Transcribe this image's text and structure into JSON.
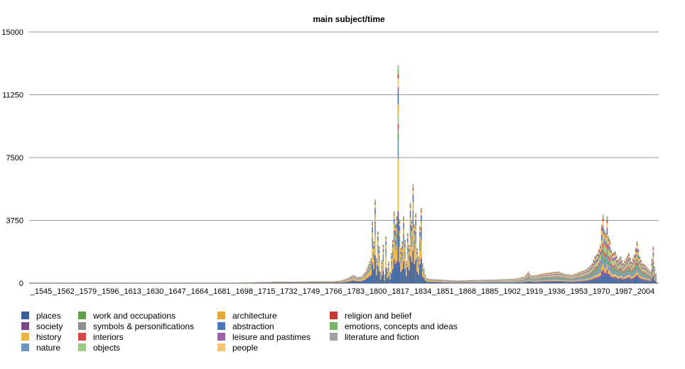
{
  "chart_data": {
    "type": "bar",
    "stacked": true,
    "title": "main subject/time",
    "xlabel": "",
    "ylabel": "",
    "ylim": [
      0,
      15000
    ],
    "y_ticks": [
      "0",
      "3750",
      "7500",
      "11250",
      "15000"
    ],
    "x_tick_labels": [
      "_1545",
      "_1562",
      "_1579",
      "_1596",
      "_1613",
      "_1630",
      "_1647",
      "_1664",
      "_1681",
      "_1698",
      "_1715",
      "_1732",
      "_1749",
      "_1766",
      "_1783",
      "_1800",
      "_1817",
      "_1834",
      "_1851",
      "_1868",
      "_1885",
      "_1902",
      "_1919",
      "_1936",
      "_1953",
      "_1970",
      "_1987",
      "_2004"
    ],
    "x_range": [
      1545,
      2009
    ],
    "grid": true,
    "legend_position": "bottom",
    "series": [
      {
        "name": "places",
        "color": "#3a5f96"
      },
      {
        "name": "society",
        "color": "#7a4a86"
      },
      {
        "name": "history",
        "color": "#eeb245"
      },
      {
        "name": "nature",
        "color": "#6e93bd"
      },
      {
        "name": "work and occupations",
        "color": "#5f9e4c"
      },
      {
        "name": "symbols & personifications",
        "color": "#8e8e8e"
      },
      {
        "name": "interiors",
        "color": "#d8474a"
      },
      {
        "name": "objects",
        "color": "#9cc98a"
      },
      {
        "name": "architecture",
        "color": "#e7a83a"
      },
      {
        "name": "abstraction",
        "color": "#4e78bb"
      },
      {
        "name": "leisure and pastimes",
        "color": "#9862a4"
      },
      {
        "name": "people",
        "color": "#f1c776"
      },
      {
        "name": "religion and belief",
        "color": "#c63a37"
      },
      {
        "name": "emotions, concepts and ideas",
        "color": "#7ab46a"
      },
      {
        "name": "literature and fiction",
        "color": "#a0a0a0"
      }
    ],
    "totals_by_year": [
      [
        1700,
        30
      ],
      [
        1720,
        60
      ],
      [
        1730,
        80
      ],
      [
        1740,
        70
      ],
      [
        1750,
        90
      ],
      [
        1760,
        100
      ],
      [
        1770,
        110
      ],
      [
        1775,
        150
      ],
      [
        1780,
        300
      ],
      [
        1784,
        500
      ],
      [
        1787,
        350
      ],
      [
        1790,
        400
      ],
      [
        1793,
        700
      ],
      [
        1795,
        1100
      ],
      [
        1797,
        1500
      ],
      [
        1798,
        3700
      ],
      [
        1799,
        2500
      ],
      [
        1800,
        5000
      ],
      [
        1801,
        1500
      ],
      [
        1802,
        3100
      ],
      [
        1803,
        2200
      ],
      [
        1804,
        700
      ],
      [
        1805,
        1400
      ],
      [
        1806,
        2300
      ],
      [
        1807,
        500
      ],
      [
        1808,
        2800
      ],
      [
        1809,
        900
      ],
      [
        1810,
        1300
      ],
      [
        1811,
        700
      ],
      [
        1812,
        1800
      ],
      [
        1813,
        2600
      ],
      [
        1814,
        4300
      ],
      [
        1815,
        3500
      ],
      [
        1816,
        4000
      ],
      [
        1817,
        13000
      ],
      [
        1818,
        3800
      ],
      [
        1819,
        2100
      ],
      [
        1820,
        2500
      ],
      [
        1821,
        4000
      ],
      [
        1822,
        2600
      ],
      [
        1823,
        1300
      ],
      [
        1824,
        3000
      ],
      [
        1825,
        2300
      ],
      [
        1826,
        4800
      ],
      [
        1827,
        3800
      ],
      [
        1828,
        5900
      ],
      [
        1829,
        3500
      ],
      [
        1830,
        4200
      ],
      [
        1831,
        2100
      ],
      [
        1832,
        1600
      ],
      [
        1833,
        3400
      ],
      [
        1834,
        4500
      ],
      [
        1835,
        1200
      ],
      [
        1836,
        900
      ],
      [
        1837,
        500
      ],
      [
        1838,
        300
      ],
      [
        1840,
        250
      ],
      [
        1845,
        220
      ],
      [
        1850,
        200
      ],
      [
        1860,
        150
      ],
      [
        1870,
        180
      ],
      [
        1880,
        200
      ],
      [
        1890,
        220
      ],
      [
        1900,
        250
      ],
      [
        1905,
        300
      ],
      [
        1910,
        400
      ],
      [
        1913,
        700
      ],
      [
        1915,
        450
      ],
      [
        1920,
        500
      ],
      [
        1925,
        600
      ],
      [
        1930,
        650
      ],
      [
        1935,
        700
      ],
      [
        1940,
        550
      ],
      [
        1945,
        500
      ],
      [
        1950,
        650
      ],
      [
        1955,
        800
      ],
      [
        1958,
        1000
      ],
      [
        1960,
        1200
      ],
      [
        1962,
        1600
      ],
      [
        1964,
        1800
      ],
      [
        1966,
        2300
      ],
      [
        1967,
        3500
      ],
      [
        1968,
        4100
      ],
      [
        1969,
        3200
      ],
      [
        1970,
        3000
      ],
      [
        1971,
        4000
      ],
      [
        1972,
        2800
      ],
      [
        1973,
        2600
      ],
      [
        1974,
        2000
      ],
      [
        1975,
        1800
      ],
      [
        1977,
        1900
      ],
      [
        1979,
        1400
      ],
      [
        1981,
        1600
      ],
      [
        1983,
        1200
      ],
      [
        1985,
        1500
      ],
      [
        1987,
        1800
      ],
      [
        1989,
        1300
      ],
      [
        1991,
        1700
      ],
      [
        1993,
        2500
      ],
      [
        1995,
        1600
      ],
      [
        1997,
        1200
      ],
      [
        1999,
        1100
      ],
      [
        2001,
        900
      ],
      [
        2003,
        700
      ],
      [
        2005,
        2200
      ],
      [
        2006,
        1000
      ],
      [
        2007,
        600
      ]
    ]
  }
}
